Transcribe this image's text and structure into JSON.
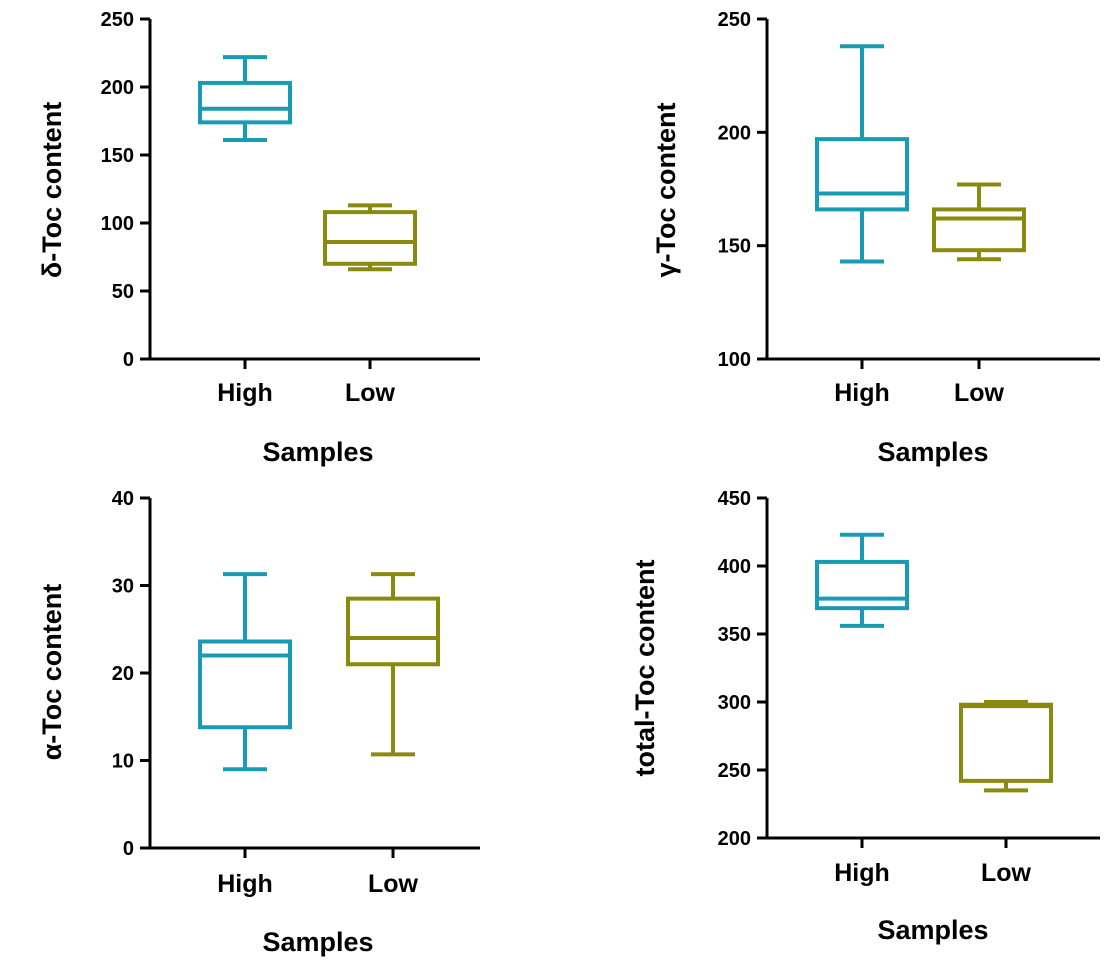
{
  "chart_data": [
    {
      "type": "box",
      "ylabel": "δ-Toc content",
      "xlabel": "Samples",
      "ylim": [
        0,
        250
      ],
      "yticks": [
        0,
        50,
        100,
        150,
        200,
        250
      ],
      "tick_labels": [
        "0",
        "50",
        "100",
        "150",
        "200",
        "250"
      ],
      "categories": [
        "High",
        "Low"
      ],
      "boxes": [
        {
          "name": "High",
          "min": 161,
          "q1": 174,
          "median": 184,
          "q3": 203,
          "max": 222,
          "color": "#1a9bb5"
        },
        {
          "name": "Low",
          "min": 66,
          "q1": 70,
          "median": 86,
          "q3": 108,
          "max": 113,
          "color": "#8a8a0e"
        }
      ]
    },
    {
      "type": "box",
      "ylabel": "γ-Toc content",
      "xlabel": "Samples",
      "ylim": [
        100,
        250
      ],
      "yticks": [
        100,
        150,
        200,
        250
      ],
      "tick_labels": [
        "100",
        "150",
        "200",
        "250"
      ],
      "categories": [
        "High",
        "Low"
      ],
      "boxes": [
        {
          "name": "High",
          "min": 143,
          "q1": 166,
          "median": 173,
          "q3": 197,
          "max": 238,
          "color": "#1a9bb5"
        },
        {
          "name": "Low",
          "min": 144,
          "q1": 148,
          "median": 162,
          "q3": 166,
          "max": 177,
          "color": "#8a8a0e"
        }
      ]
    },
    {
      "type": "box",
      "ylabel": "α-Toc content",
      "xlabel": "Samples",
      "ylim": [
        0,
        40
      ],
      "yticks": [
        0,
        10,
        20,
        30,
        40
      ],
      "tick_labels": [
        "0",
        "10",
        "20",
        "30",
        "40"
      ],
      "categories": [
        "High",
        "Low"
      ],
      "boxes": [
        {
          "name": "High",
          "min": 9,
          "q1": 13.8,
          "median": 22,
          "q3": 23.6,
          "max": 31.3,
          "color": "#1a9bb5"
        },
        {
          "name": "Low",
          "min": 10.7,
          "q1": 21,
          "median": 24,
          "q3": 28.5,
          "max": 31.3,
          "color": "#8a8a0e"
        }
      ]
    },
    {
      "type": "box",
      "ylabel": "total-Toc content",
      "xlabel": "Samples",
      "ylim": [
        200,
        450
      ],
      "yticks": [
        200,
        250,
        300,
        350,
        400,
        450
      ],
      "tick_labels": [
        "200",
        "250",
        "300",
        "350",
        "400",
        "450"
      ],
      "categories": [
        "High",
        "Low"
      ],
      "boxes": [
        {
          "name": "High",
          "min": 356,
          "q1": 369,
          "median": 376,
          "q3": 403,
          "max": 423,
          "color": "#1a9bb5"
        },
        {
          "name": "Low",
          "min": 235,
          "q1": 242,
          "median": 297,
          "q3": 298,
          "max": 300,
          "color": "#8a8a0e"
        }
      ]
    }
  ]
}
